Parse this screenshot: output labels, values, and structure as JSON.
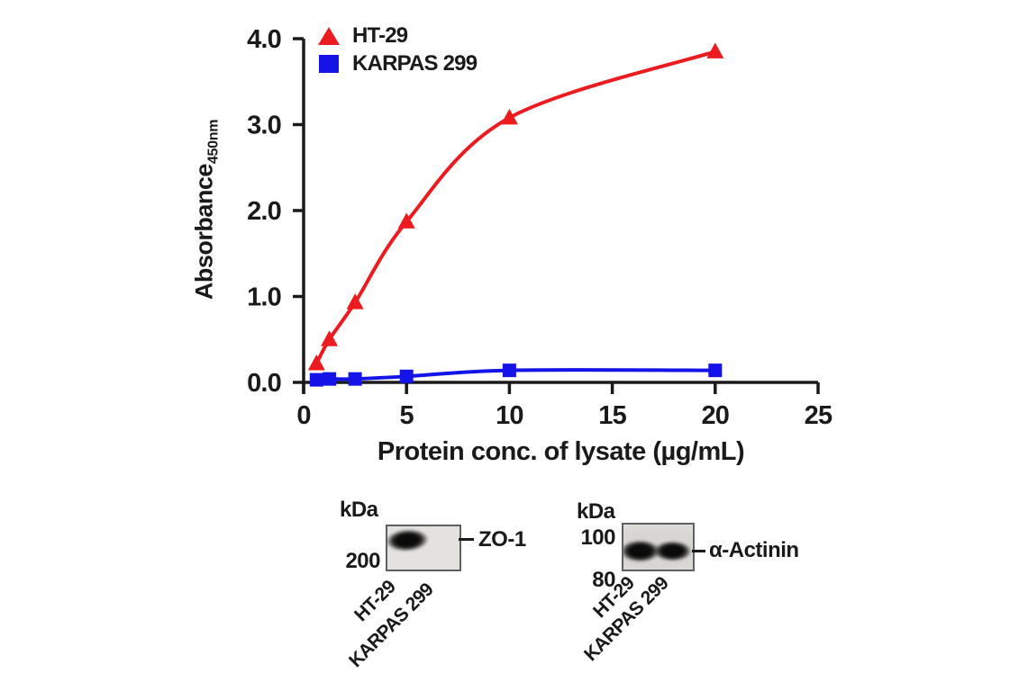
{
  "chart_data": {
    "type": "line",
    "title": "",
    "xlabel": "Protein conc. of lysate (µg/mL)",
    "ylabel": "Absorbance",
    "ylabel_subscript": "450nm",
    "xlim": [
      0,
      25
    ],
    "ylim": [
      0,
      4
    ],
    "xtick_values": [
      0,
      5,
      10,
      15,
      20,
      25
    ],
    "xtick_labels": [
      "0",
      "5",
      "10",
      "15",
      "20",
      "25"
    ],
    "ytick_values": [
      0,
      1,
      2,
      3,
      4
    ],
    "ytick_labels": [
      "0.0",
      "1.0",
      "2.0",
      "3.0",
      "4.0"
    ],
    "grid": false,
    "legend_position": "top-left",
    "axis_color": "#1a1a1a",
    "series": [
      {
        "name": "HT-29",
        "marker": "triangle",
        "color": "#ec1b1f",
        "x": [
          0.625,
          1.25,
          2.5,
          5,
          10,
          20
        ],
        "y": [
          0.22,
          0.5,
          0.93,
          1.87,
          3.08,
          3.85
        ]
      },
      {
        "name": "KARPAS 299",
        "marker": "square",
        "color": "#1414e8",
        "x": [
          0.625,
          1.25,
          2.5,
          5,
          10,
          20
        ],
        "y": [
          0.03,
          0.04,
          0.04,
          0.07,
          0.14,
          0.14
        ]
      }
    ]
  },
  "blots": {
    "left": {
      "unit_label": "kDa",
      "marker_labels": [
        "200"
      ],
      "band_label": "ZO-1",
      "lane_labels": [
        "HT-29",
        "KARPAS 299"
      ],
      "bands_in_lanes": [
        0
      ]
    },
    "right": {
      "unit_label": "kDa",
      "marker_labels": [
        "100",
        "80"
      ],
      "band_label": "α-Actinin",
      "lane_labels": [
        "HT-29",
        "KARPAS 299"
      ],
      "bands_in_lanes": [
        0,
        1
      ]
    }
  }
}
